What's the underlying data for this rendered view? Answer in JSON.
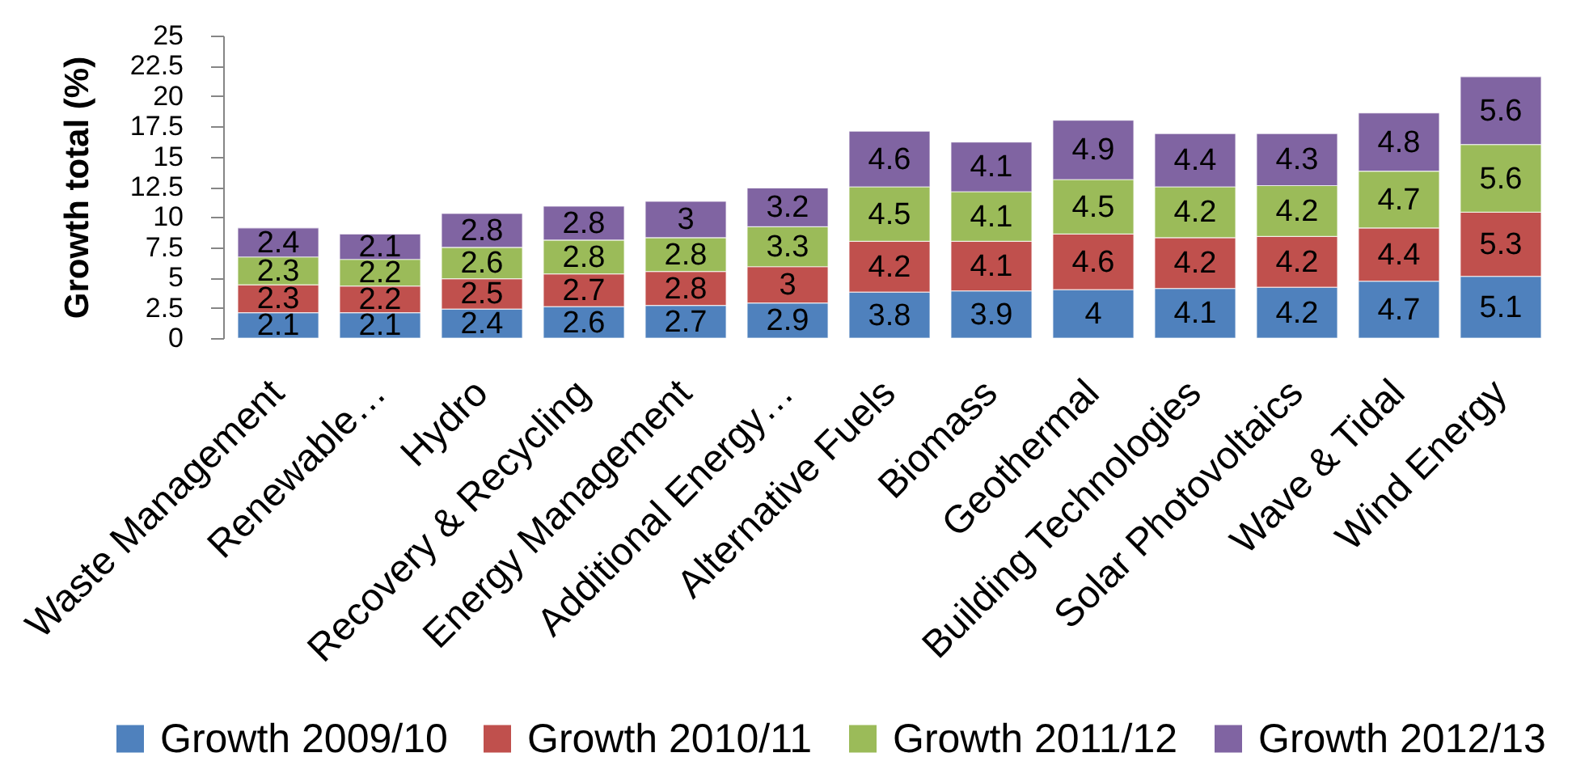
{
  "chart_data": {
    "type": "bar",
    "stacked": true,
    "ylabel": "Growth total (%)",
    "categories": [
      "Waste Management",
      "Renewable…",
      "Hydro",
      "Recovery & Recycling",
      "Energy Management",
      "Additional Energy…",
      "Alternative Fuels",
      "Biomass",
      "Geothermal",
      "Building Technologies",
      "Solar Photovoltaics",
      "Wave & Tidal",
      "Wind Energy"
    ],
    "series": [
      {
        "name": "Growth 2009/10",
        "color": "#4f81bd",
        "values": [
          2.1,
          2.1,
          2.4,
          2.6,
          2.7,
          2.9,
          3.8,
          3.9,
          4,
          4.1,
          4.2,
          4.7,
          5.1
        ]
      },
      {
        "name": "Growth 2010/11",
        "color": "#c0504d",
        "values": [
          2.3,
          2.2,
          2.5,
          2.7,
          2.8,
          3,
          4.2,
          4.1,
          4.6,
          4.2,
          4.2,
          4.4,
          5.3
        ]
      },
      {
        "name": "Growth 2011/12",
        "color": "#9bbb59",
        "values": [
          2.3,
          2.2,
          2.6,
          2.8,
          2.8,
          3.3,
          4.5,
          4.1,
          4.5,
          4.2,
          4.2,
          4.7,
          5.6
        ]
      },
      {
        "name": "Growth 2012/13",
        "color": "#8064a2",
        "values": [
          2.4,
          2.1,
          2.8,
          2.8,
          3,
          3.2,
          4.6,
          4.1,
          4.9,
          4.4,
          4.3,
          4.8,
          5.6
        ]
      }
    ],
    "ylim": [
      0,
      25
    ],
    "yticks": [
      0,
      2.5,
      5,
      7.5,
      10,
      12.5,
      15,
      17.5,
      20,
      22.5,
      25
    ],
    "data_labels": true,
    "legend": "bottom"
  }
}
